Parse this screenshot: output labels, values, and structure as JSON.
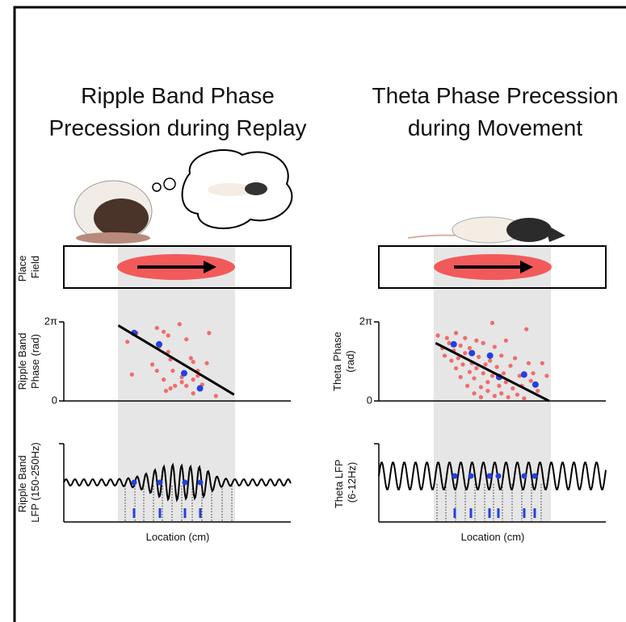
{
  "panels": [
    {
      "title": [
        "Ripple Band Phase",
        "Precession during Replay"
      ],
      "place_label": [
        "Place",
        "Field"
      ],
      "lfp_label": [
        "Ripple Band",
        "LFP (150-250Hz)"
      ],
      "x_label": "Location (cm)"
    },
    {
      "title": [
        "Theta Phase Precession",
        "during Movement"
      ],
      "lfp_label": [
        "Theta LFP",
        "(6-12Hz)"
      ],
      "x_label": "Location (cm)"
    }
  ],
  "chart_data": [
    {
      "type": "scatter",
      "y_label": [
        "Ripple Band",
        "Phase (rad)"
      ],
      "xlim": [
        0,
        100
      ],
      "ylim": [
        0,
        6.283
      ],
      "yticks": [
        0,
        {
          "value": 6.283,
          "label": "2π"
        }
      ],
      "series": [
        {
          "color": "#f26b6b",
          "x": [
            28,
            30,
            32,
            41,
            44,
            46,
            42,
            46,
            47,
            51,
            54,
            56,
            57,
            39,
            41,
            44,
            48,
            52,
            52,
            54,
            57,
            59,
            61,
            63,
            64,
            67,
            49,
            47,
            45,
            57,
            59
          ],
          "values": [
            4.7,
            2.1,
            5.4,
            5.8,
            5.5,
            5.2,
            4.3,
            3.9,
            3.3,
            6.1,
            4.9,
            3.4,
            3.1,
            2.9,
            2.4,
            1.7,
            2.4,
            1.9,
            1.5,
            1.2,
            1.7,
            2.0,
            1.3,
            3.0,
            5.4,
            0.4,
            1.2,
            1.0,
            0.8,
            0.6,
            2.4
          ]
        },
        {
          "color": "#2340e0",
          "x": [
            31,
            42,
            53,
            60
          ],
          "values": [
            5.4,
            4.5,
            2.2,
            1.0
          ]
        }
      ],
      "fit": {
        "x": [
          24,
          75
        ],
        "y": [
          6.0,
          0.5
        ]
      }
    },
    {
      "type": "scatter",
      "y_label": [
        "Theta Phase",
        "(rad)"
      ],
      "xlim": [
        0,
        100
      ],
      "ylim": [
        0,
        6.283
      ],
      "yticks": [
        0,
        {
          "value": 6.283,
          "label": "2π"
        }
      ],
      "series": [
        {
          "color": "#f26b6b",
          "x": [
            26,
            28,
            29,
            30,
            31,
            32,
            33,
            34,
            34,
            35,
            36,
            36,
            37,
            38,
            38,
            39,
            40,
            40,
            41,
            42,
            42,
            43,
            43,
            44,
            45,
            45,
            46,
            46,
            47,
            48,
            48,
            49,
            50,
            50,
            51,
            51,
            52,
            53,
            54,
            54,
            55,
            56,
            56,
            57,
            58,
            59,
            60,
            61,
            62,
            63,
            64,
            65,
            66,
            67,
            68,
            70,
            72,
            74
          ],
          "values": [
            5.2,
            4.2,
            3.6,
            5.0,
            4.6,
            3.2,
            4.0,
            2.6,
            5.4,
            3.4,
            4.4,
            1.9,
            2.9,
            5.0,
            3.8,
            1.2,
            2.3,
            4.2,
            3.0,
            0.6,
            1.8,
            4.8,
            2.6,
            3.5,
            1.1,
            0.3,
            2.2,
            4.6,
            2.9,
            1.5,
            0.8,
            3.2,
            6.2,
            2.0,
            4.3,
            0.4,
            2.7,
            1.2,
            3.6,
            0.6,
            2.2,
            4.8,
            1.5,
            0.3,
            2.8,
            1.0,
            3.4,
            0.5,
            2.0,
            1.2,
            0.2,
            5.7,
            3.0,
            1.6,
            2.2,
            0.8,
            3.0,
            2.0
          ]
        },
        {
          "color": "#2340e0",
          "x": [
            33,
            41,
            49,
            53,
            64,
            69
          ],
          "values": [
            4.5,
            3.8,
            3.6,
            1.9,
            2.1,
            1.3
          ]
        }
      ],
      "fit": {
        "x": [
          25,
          75
        ],
        "y": [
          4.6,
          0
        ]
      }
    }
  ]
}
